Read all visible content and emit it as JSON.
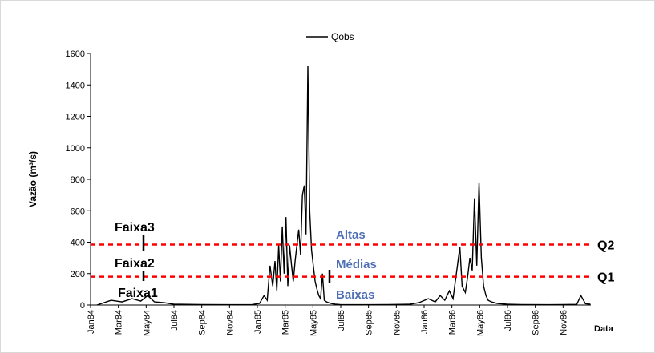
{
  "chart_data": {
    "type": "line",
    "xlabel": "Data",
    "ylabel": "Vazão (m³/s)",
    "ylim": [
      0,
      1600
    ],
    "yticks": [
      0,
      200,
      400,
      600,
      800,
      1000,
      1200,
      1400,
      1600
    ],
    "xticks": [
      "Jan84",
      "Mar84",
      "May84",
      "Jul84",
      "Sep84",
      "Nov84",
      "Jan85",
      "Mar85",
      "May85",
      "Jul85",
      "Sep85",
      "Nov85",
      "Jan86",
      "Mar86",
      "May86",
      "Jul86",
      "Sep86",
      "Nov86"
    ],
    "grid": false,
    "legend": {
      "placement": "top-center",
      "entries": [
        "Qobs"
      ]
    },
    "series": [
      {
        "name": "Qobs",
        "color": "#000000",
        "x": [
          "1984-01-15",
          "1984-02-15",
          "1984-03-10",
          "1984-04-01",
          "1984-04-20",
          "1984-05-05",
          "1984-05-20",
          "1984-06-10",
          "1984-07-01",
          "1984-09-01",
          "1984-11-01",
          "1984-12-20",
          "1985-01-05",
          "1985-01-15",
          "1985-01-22",
          "1985-01-28",
          "1985-02-03",
          "1985-02-08",
          "1985-02-12",
          "1985-02-16",
          "1985-02-20",
          "1985-02-24",
          "1985-02-28",
          "1985-03-04",
          "1985-03-08",
          "1985-03-12",
          "1985-03-16",
          "1985-03-20",
          "1985-03-24",
          "1985-03-28",
          "1985-04-01",
          "1985-04-05",
          "1985-04-09",
          "1985-04-13",
          "1985-04-17",
          "1985-04-21",
          "1985-04-25",
          "1985-04-29",
          "1985-05-03",
          "1985-05-07",
          "1985-05-11",
          "1985-05-15",
          "1985-05-19",
          "1985-05-23",
          "1985-05-27",
          "1985-06-01",
          "1985-06-10",
          "1985-06-20",
          "1985-07-01",
          "1985-07-15",
          "1985-08-01",
          "1985-09-01",
          "1985-10-15",
          "1985-12-01",
          "1985-12-20",
          "1986-01-10",
          "1986-01-25",
          "1986-02-05",
          "1986-02-15",
          "1986-02-25",
          "1986-03-05",
          "1986-03-10",
          "1986-03-15",
          "1986-03-20",
          "1986-03-25",
          "1986-04-01",
          "1986-04-06",
          "1986-04-11",
          "1986-04-16",
          "1986-04-21",
          "1986-04-26",
          "1986-05-01",
          "1986-05-06",
          "1986-05-11",
          "1986-05-16",
          "1986-05-21",
          "1986-05-28",
          "1986-06-10",
          "1986-07-01",
          "1986-08-01",
          "1986-10-01",
          "1986-11-01",
          "1986-12-01",
          "1986-12-10",
          "1986-12-20",
          "1986-12-31"
        ],
        "y": [
          0,
          30,
          20,
          40,
          25,
          60,
          20,
          15,
          5,
          3,
          2,
          3,
          10,
          60,
          30,
          250,
          120,
          280,
          90,
          380,
          150,
          500,
          200,
          560,
          120,
          380,
          260,
          150,
          280,
          380,
          480,
          320,
          700,
          760,
          450,
          1520,
          600,
          350,
          250,
          150,
          100,
          60,
          40,
          200,
          30,
          20,
          10,
          5,
          3,
          2,
          2,
          2,
          3,
          5,
          15,
          40,
          20,
          60,
          30,
          90,
          40,
          150,
          260,
          370,
          120,
          80,
          180,
          300,
          220,
          680,
          250,
          780,
          300,
          120,
          60,
          30,
          20,
          10,
          5,
          3,
          2,
          3,
          4,
          60,
          8,
          5
        ]
      }
    ],
    "reference_lines": [
      {
        "name": "Q2",
        "value": 385,
        "color": "#ff0000",
        "style": "dashed"
      },
      {
        "name": "Q1",
        "value": 180,
        "color": "#ff0000",
        "style": "dashed"
      }
    ],
    "annotations": {
      "bands": [
        "Faixa3",
        "Faixa2",
        "Faixa1"
      ],
      "zones": [
        "Altas",
        "Médias",
        "Baixas"
      ]
    },
    "zone_color": "#4f6fb5"
  }
}
